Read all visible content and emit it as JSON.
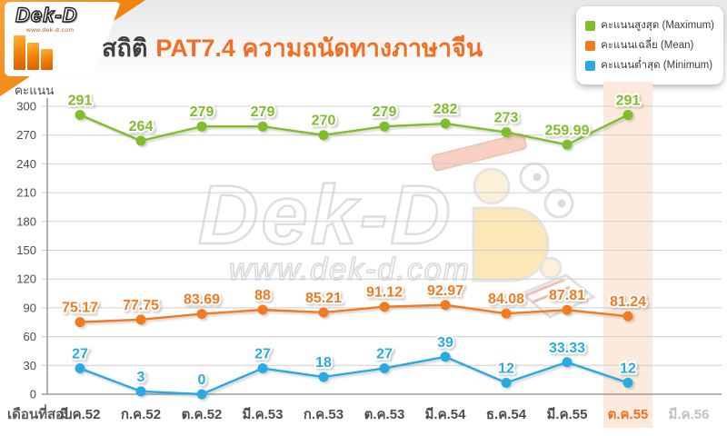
{
  "header": {
    "logo": {
      "brand": "Dek-D",
      "url": "www.dek-d.com"
    },
    "title_prefix": "สถิติ",
    "title_main": "PAT7.4 ความถนัดทางภาษาจีน"
  },
  "watermark": {
    "brand": "Dek-D",
    "url": "www.dek-d.com"
  },
  "chart_data": {
    "type": "line",
    "title": "สถิติ PAT7.4 ความถนัดทางภาษาจีน",
    "xlabel": "เดือนที่สอบ",
    "ylabel": "คะแนน",
    "ylim": [
      0,
      300
    ],
    "yticks": [
      0,
      30,
      60,
      90,
      120,
      150,
      180,
      210,
      240,
      270,
      300
    ],
    "grid": true,
    "legend_position": "top-right",
    "categories": [
      "มี.ค.52",
      "ก.ค.52",
      "ต.ค.52",
      "มี.ค.53",
      "ก.ค.53",
      "ต.ค.53",
      "มี.ค.54",
      "ธ.ค.54",
      "มี.ค.55",
      "ต.ค.55",
      "มี.ค.56"
    ],
    "series": [
      {
        "key": "maximum",
        "name": "คะแนนสูงสุด (Maximum)",
        "color": "#80bd2a",
        "values": [
          291,
          264,
          279,
          279,
          270,
          279,
          282,
          273,
          259.99,
          291,
          null
        ]
      },
      {
        "key": "mean",
        "name": "คะแนนเฉลี่ย (Mean)",
        "color": "#f47a1f",
        "values": [
          75.17,
          77.75,
          83.69,
          88,
          85.21,
          91.12,
          92.97,
          84.08,
          87.81,
          81.24,
          null
        ]
      },
      {
        "key": "minimum",
        "name": "คะแนนต่ำสุด (Minimum)",
        "color": "#29abe2",
        "values": [
          27,
          3,
          0,
          27,
          18,
          27,
          39,
          12,
          33.33,
          12,
          null
        ]
      }
    ],
    "highlight_index": 9,
    "future_index": 10,
    "highlight_band_color": "#fcebdc",
    "highlight_label_color": "#f26f21",
    "future_label_color": "#c2c2c2",
    "category_label_color": "#4d4d4d",
    "grid_color": "#cfcfcf",
    "axis_color": "#9c9c9c"
  }
}
